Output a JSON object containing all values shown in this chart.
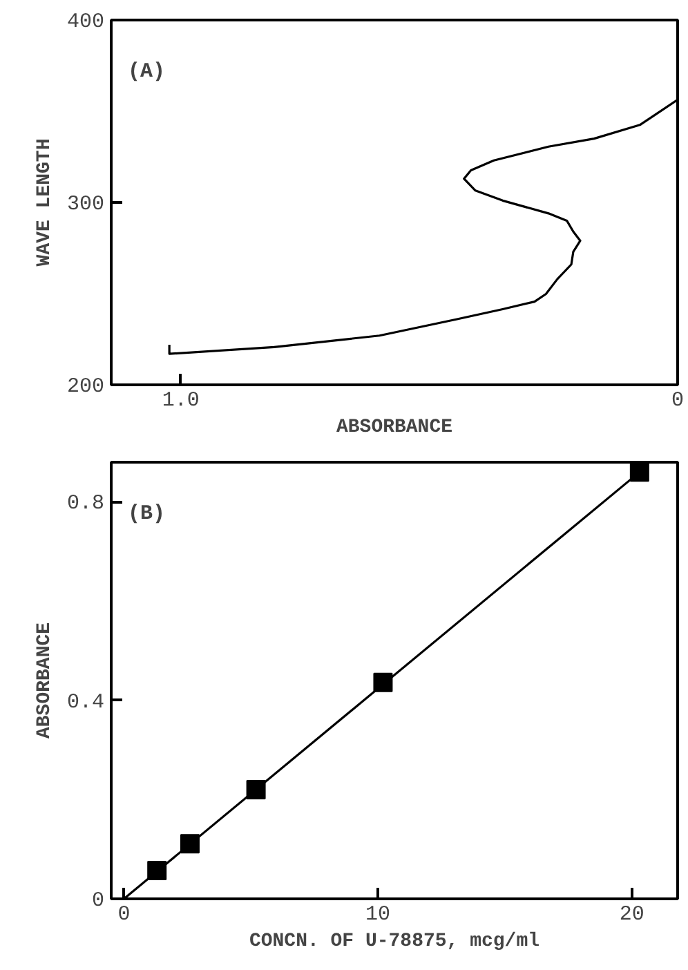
{
  "chart_data": [
    {
      "type": "line",
      "xlabel": "ABSORBANCE",
      "ylabel": "WAVE LENGTH",
      "annotations": [
        "(A)"
      ],
      "xlim": [
        1.14,
        0
      ],
      "ylim": [
        200,
        400
      ],
      "xticks": [
        {
          "value": 1.0,
          "label": "1.0"
        },
        0
      ],
      "yticks": [
        200,
        300,
        400
      ],
      "grid": false,
      "line_style": "solid",
      "series": [
        {
          "color": "#000000",
          "x": [
            1.023,
            1.023,
            0.812,
            0.6,
            0.444,
            0.352,
            0.288,
            0.265,
            0.242,
            0.214,
            0.21,
            0.196,
            0.21,
            0.223,
            0.26,
            0.352,
            0.407,
            0.43,
            0.416,
            0.37,
            0.26,
            0.168,
            0.076,
            0
          ],
          "values": [
            222,
            217,
            220.7,
            227,
            236,
            241.5,
            245.6,
            249.8,
            258,
            266,
            273,
            279,
            284,
            290,
            294,
            301,
            306.5,
            313,
            317.6,
            323,
            330.6,
            335,
            342.5,
            356.3
          ]
        }
      ]
    },
    {
      "type": "scatter",
      "xlabel": "CONCN. OF U-78875, mcg/ml",
      "ylabel": "ABSORBANCE",
      "annotations": [
        "(B)"
      ],
      "xlim": [
        -0.5,
        21.8
      ],
      "ylim": [
        0,
        0.88
      ],
      "xticks": [
        0,
        10,
        20
      ],
      "yticks": [
        0,
        0.4,
        0.8
      ],
      "grid": false,
      "series": [
        {
          "marker": "square",
          "color": "#000000",
          "x": [
            1.3,
            2.6,
            5.2,
            10.2,
            20.3
          ],
          "values": [
            0.057,
            0.111,
            0.22,
            0.436,
            0.86
          ]
        },
        {
          "type": "line",
          "marker": "none",
          "color": "#000000",
          "x": [
            0,
            20.3
          ],
          "values": [
            0,
            0.86
          ]
        }
      ]
    }
  ]
}
